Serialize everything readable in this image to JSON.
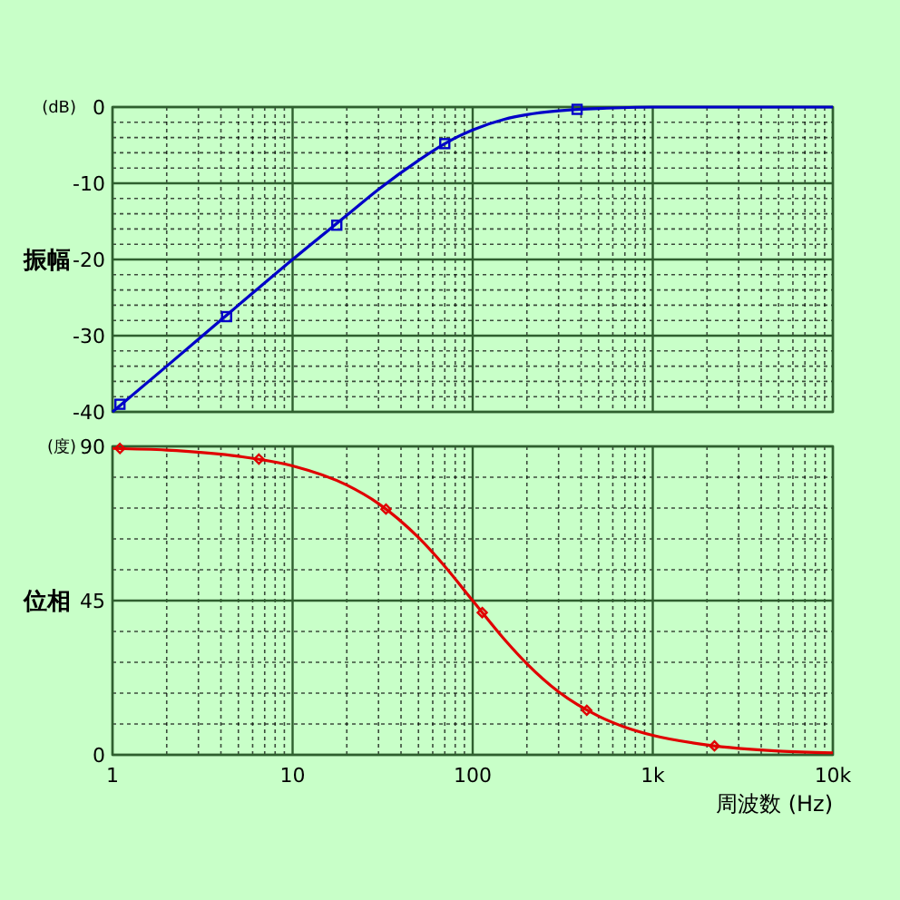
{
  "chart_data": [
    {
      "type": "line",
      "ylabel": "振幅",
      "annotations": [
        "(dB)"
      ],
      "log": "x",
      "grid": true,
      "tick_labels": "y",
      "xlim": [
        1,
        10000
      ],
      "ylim": [
        -40,
        0
      ],
      "yticks": [
        -40,
        -30,
        -20,
        -10,
        0
      ],
      "series": [
        {
          "color": "#0000c8",
          "marker": "none",
          "x": [
            1,
            2,
            5,
            10,
            20,
            30,
            50,
            70,
            100,
            150,
            200,
            300,
            500,
            1000,
            2000,
            10000
          ],
          "values": [
            -40,
            -34,
            -26,
            -20,
            -14.2,
            -10.8,
            -7,
            -4.8,
            -3,
            -1.6,
            -1,
            -0.5,
            -0.2,
            0,
            0,
            0
          ]
        },
        {
          "type": "scatter",
          "color": "#0000c8",
          "marker": "square",
          "x": [
            1.1,
            4.3,
            17.6,
            70,
            380
          ],
          "values": [
            -39,
            -27.5,
            -15.5,
            -4.8,
            -0.3
          ]
        }
      ]
    },
    {
      "type": "line",
      "ylabel": "位相",
      "xlabel": "周波数 (Hz)",
      "annotations": [
        "(度)"
      ],
      "log": "x",
      "grid": true,
      "xlim": [
        1,
        10000
      ],
      "xticks": [
        1,
        10,
        100,
        {
          "value": 1000,
          "label": "1k"
        },
        {
          "value": 10000,
          "label": "10k"
        }
      ],
      "ylim": [
        0,
        90
      ],
      "yticks": [
        0,
        45,
        90
      ],
      "series": [
        {
          "color": "#e00000",
          "marker": "none",
          "x": [
            1,
            2,
            5,
            10,
            20,
            30,
            50,
            70,
            100,
            150,
            200,
            300,
            500,
            700,
            1000,
            2000,
            5000,
            10000
          ],
          "values": [
            89.4,
            88.9,
            87.1,
            84.3,
            78.7,
            73.3,
            63.4,
            55,
            45,
            33.7,
            26.6,
            18.4,
            11.3,
            8.1,
            5.7,
            2.9,
            1.1,
            0.6
          ]
        },
        {
          "type": "scatter",
          "color": "#e00000",
          "marker": "diamond",
          "x": [
            1.1,
            6.5,
            33,
            113,
            430,
            2200
          ],
          "values": [
            89.4,
            86.3,
            71.7,
            41.5,
            13,
            2.6
          ]
        }
      ]
    }
  ]
}
